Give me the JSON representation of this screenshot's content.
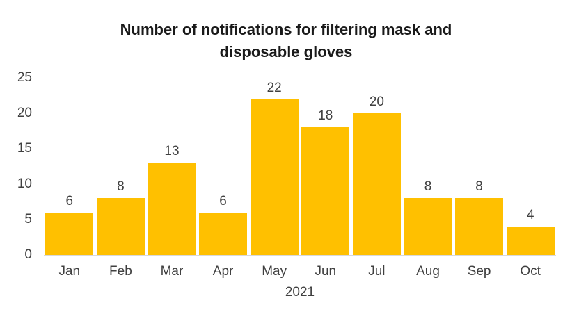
{
  "chart_data": {
    "type": "bar",
    "title": "Number of notifications for filtering mask and disposable gloves",
    "categories": [
      "Jan",
      "Feb",
      "Mar",
      "Apr",
      "May",
      "Jun",
      "Jul",
      "Aug",
      "Sep",
      "Oct"
    ],
    "values": [
      6,
      8,
      13,
      6,
      22,
      18,
      20,
      8,
      8,
      4
    ],
    "xlabel": "2021",
    "ylabel": "",
    "ylim": [
      0,
      25
    ],
    "yticks": [
      0,
      5,
      10,
      15,
      20,
      25
    ],
    "grid": false,
    "legend_position": "none",
    "data_labels_visible": true,
    "colors": {
      "bar": "#FFC000",
      "title_text": "#1A1A1A",
      "axis_text": "#404040",
      "axis_line": "#D9D9D9",
      "background": "#FFFFFF"
    }
  }
}
